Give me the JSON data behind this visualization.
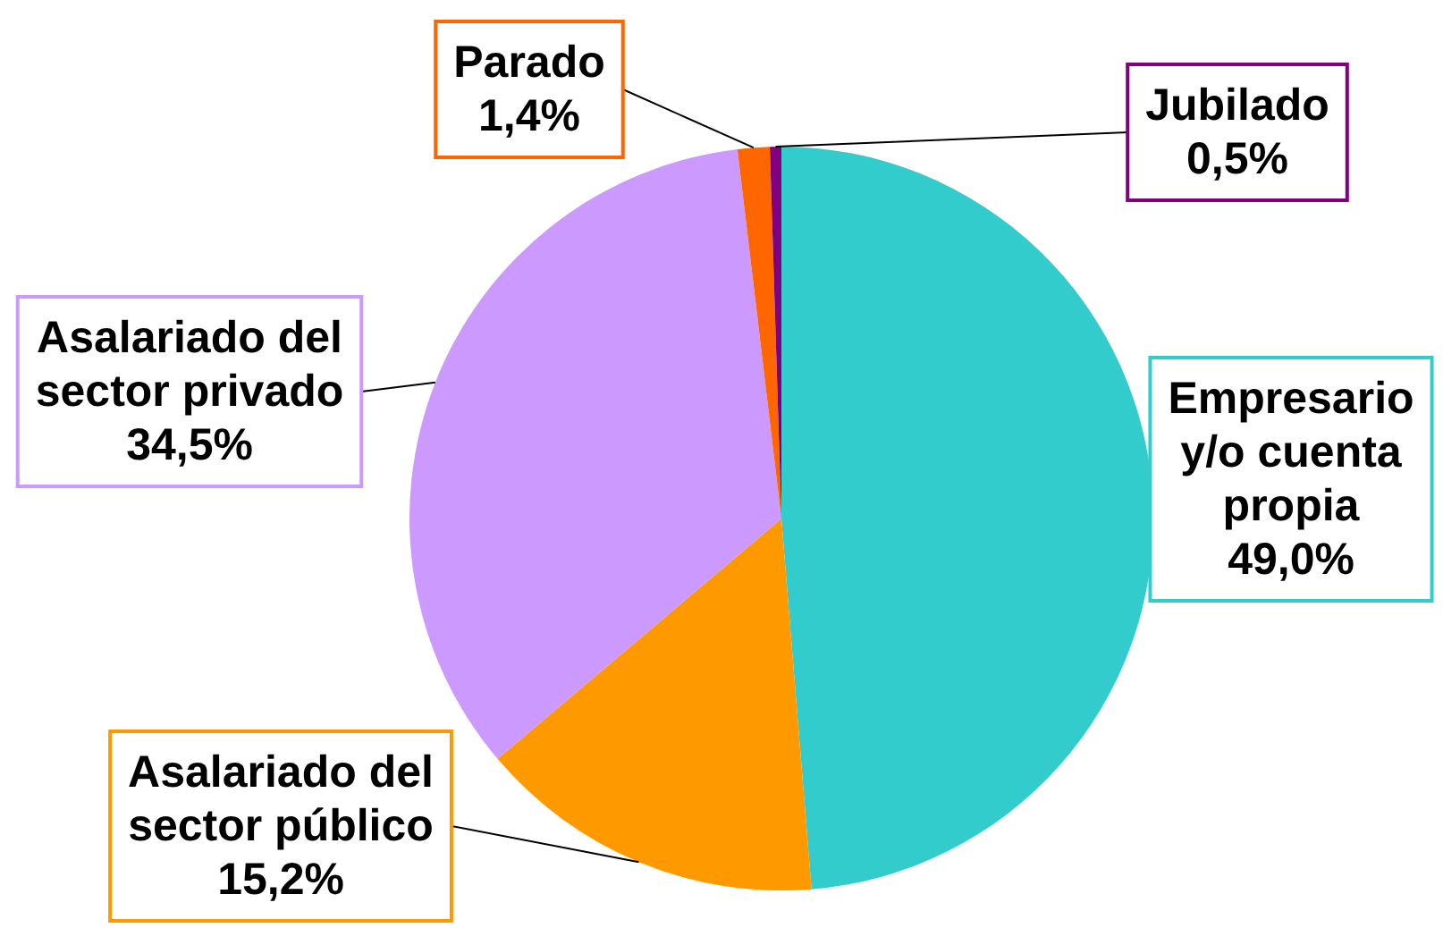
{
  "chart_data": {
    "type": "pie",
    "categories": [
      "Empresario y/o cuenta propia",
      "Asalariado del sector público",
      "Asalariado del sector privado",
      "Parado",
      "Jubilado"
    ],
    "values": [
      49.0,
      15.2,
      34.5,
      1.4,
      0.5
    ],
    "colors": [
      "#33cccc",
      "#ff9900",
      "#cc99ff",
      "#ff6600",
      "#800080"
    ],
    "value_labels": [
      "49,0%",
      "15,2%",
      "34,5%",
      "1,4%",
      "0,5%"
    ]
  }
}
